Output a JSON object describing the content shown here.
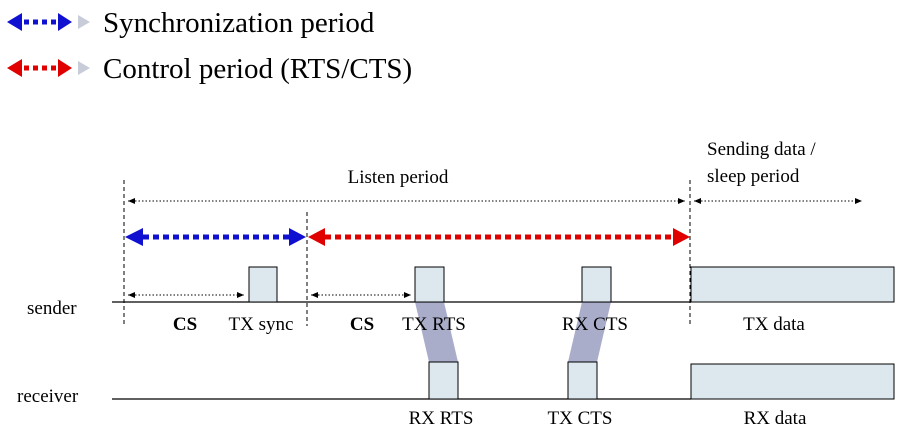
{
  "legend": {
    "sync_label": "Synchronization period",
    "control_label": "Control period (RTS/CTS)"
  },
  "periods": {
    "listen": "Listen period",
    "sending_line1": "Sending data /",
    "sending_line2": "sleep period"
  },
  "rows": {
    "sender": "sender",
    "receiver": "receiver"
  },
  "sender_labels": {
    "cs1": "CS",
    "tx_sync": "TX sync",
    "cs2": "CS",
    "tx_rts": "TX RTS",
    "rx_cts": "RX CTS",
    "tx_data": "TX data"
  },
  "receiver_labels": {
    "rx_rts": "RX RTS",
    "tx_cts": "TX CTS",
    "rx_data": "RX data"
  },
  "colors": {
    "sync_arrow": "#1010d0",
    "control_arrow": "#e00000",
    "block_fill": "#dde8ee",
    "link_fill": "#8e92b8",
    "line": "#000000"
  }
}
